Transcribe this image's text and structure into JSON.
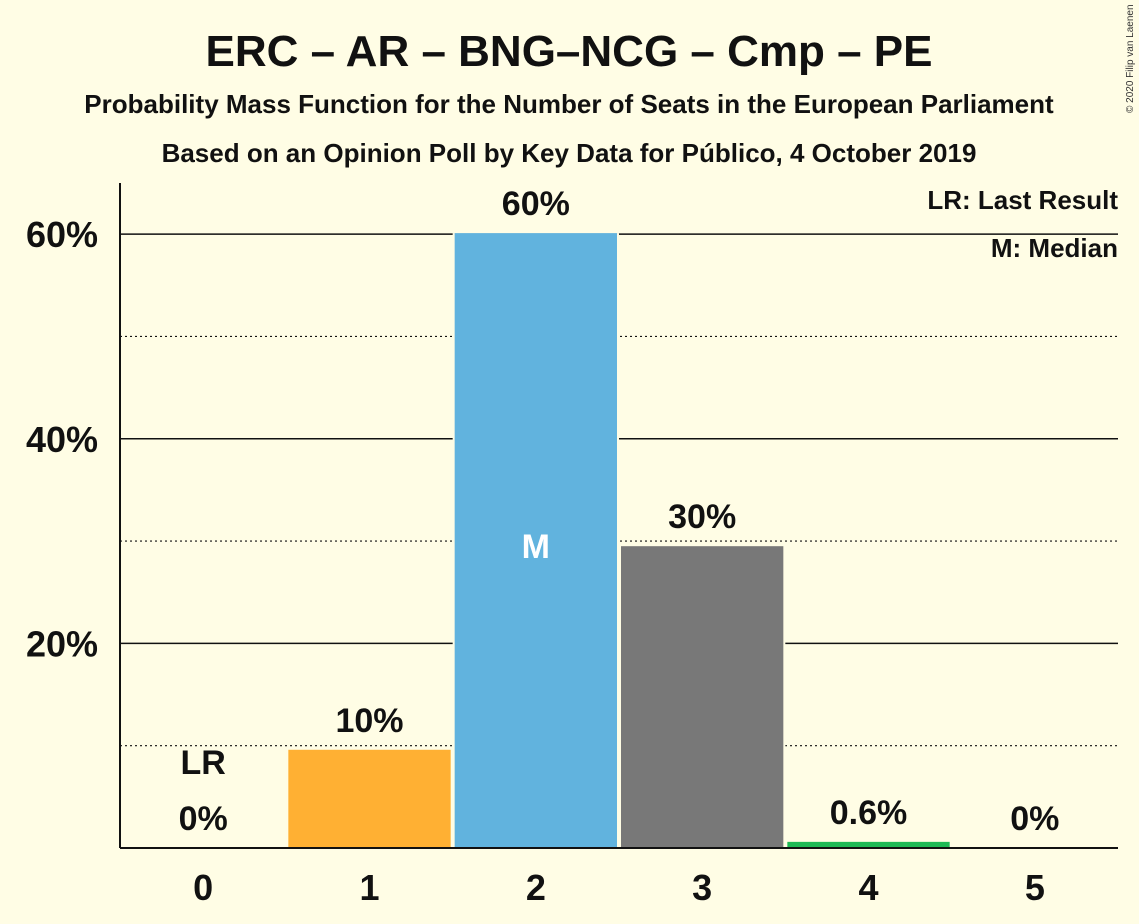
{
  "chart_data": {
    "type": "bar",
    "title": "ERC – AR – BNG–NCG – Cmp – PE",
    "subtitle": "Probability Mass Function for the Number of Seats in the European Parliament",
    "subtitle2": "Based on an Opinion Poll by Key Data for Público, 4 October 2019",
    "copyright": "© 2020 Filip van Laenen",
    "categories": [
      "0",
      "1",
      "2",
      "3",
      "4",
      "5"
    ],
    "values": [
      0,
      9.6,
      60.1,
      29.5,
      0.6,
      0
    ],
    "labels": [
      "0%",
      "10%",
      "60%",
      "30%",
      "0.6%",
      "0%"
    ],
    "colors": [
      "#FFB033",
      "#FFB033",
      "#61B3DE",
      "#787878",
      "#1DB954",
      "#1DB954"
    ],
    "ylim": [
      0,
      65
    ],
    "yticks": [
      20,
      40,
      60
    ],
    "ytick_labels": [
      "20%",
      "40%",
      "60%"
    ],
    "minor_gridlines": [
      10,
      30,
      50
    ],
    "last_result_index": 0,
    "last_result_marker": "LR",
    "median_index": 2,
    "median_marker": "M",
    "legend": [
      "LR: Last Result",
      "M: Median"
    ],
    "legend_placement": "top-right",
    "grid": true,
    "xlabel": "",
    "ylabel": ""
  }
}
